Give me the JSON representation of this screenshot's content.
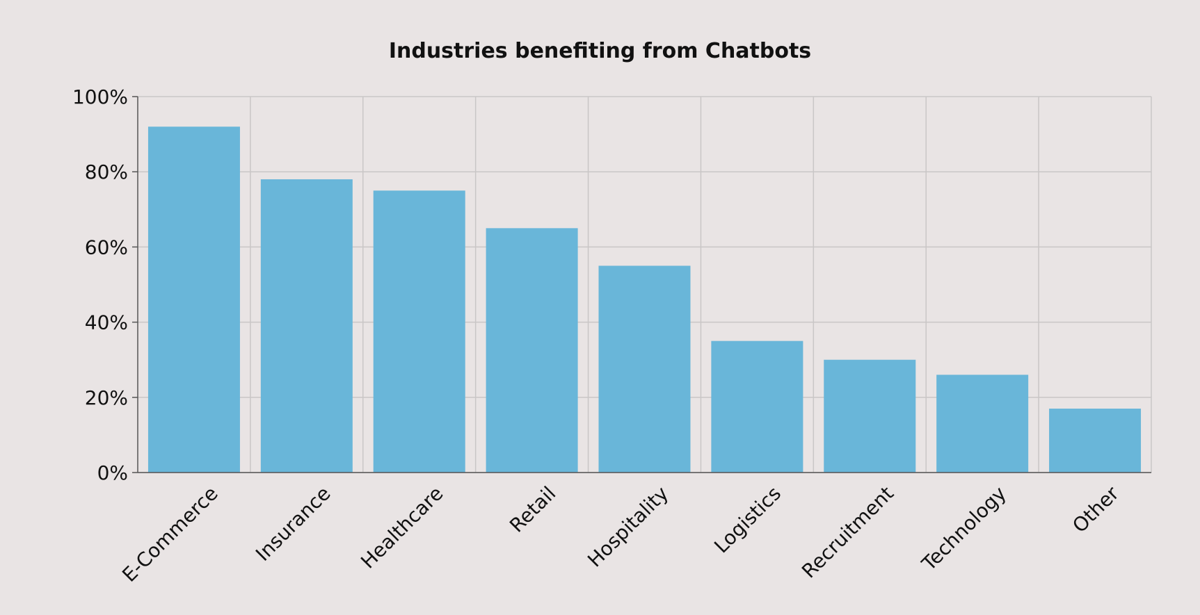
{
  "chart_data": {
    "type": "bar",
    "title": "Industries benefiting from Chatbots",
    "xlabel": "",
    "ylabel": "",
    "categories": [
      "E-Commerce",
      "Insurance",
      "Healthcare",
      "Retail",
      "Hospitality",
      "Logistics",
      "Recruitment",
      "Technology",
      "Other"
    ],
    "values": [
      92,
      78,
      75,
      65,
      55,
      35,
      30,
      26,
      17
    ],
    "value_format": "percent",
    "ylim": [
      0,
      100
    ],
    "yticks": [
      0,
      20,
      40,
      60,
      80,
      100
    ],
    "ytick_labels": [
      "0%",
      "20%",
      "40%",
      "60%",
      "80%",
      "100%"
    ],
    "grid": true,
    "legend": "none",
    "bar_color": "#69b6d9",
    "grid_color": "#c9c6c6",
    "axis_color": "#555555",
    "background": "#e9e4e4"
  }
}
